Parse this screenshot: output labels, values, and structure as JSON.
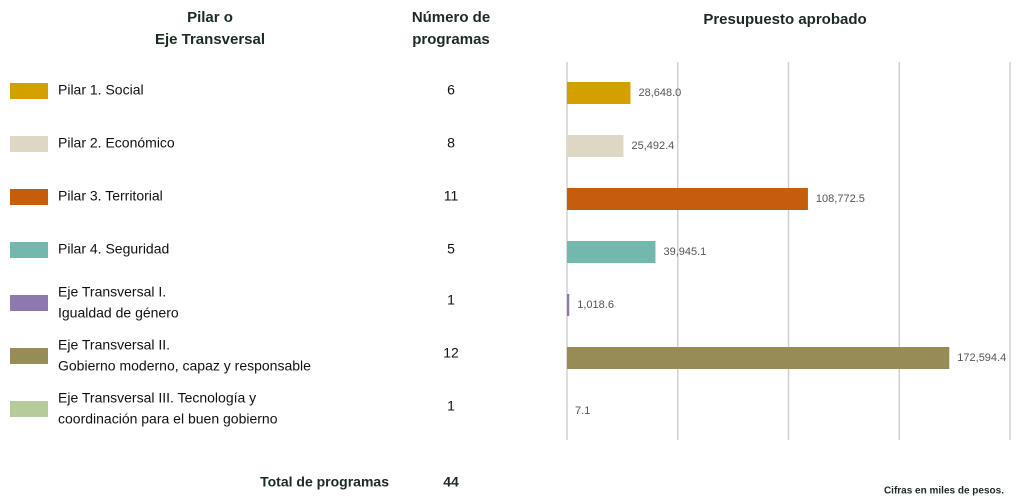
{
  "chart_data": {
    "type": "bar",
    "orientation": "horizontal",
    "column_headers": [
      [
        "Pilar o",
        "Eje Transversal"
      ],
      [
        "Número de",
        "programas"
      ],
      [
        "Presupuesto aprobado"
      ]
    ],
    "categories": [
      [
        "Pilar 1. Social"
      ],
      [
        "Pilar 2. Económico"
      ],
      [
        "Pilar 3. Territorial"
      ],
      [
        "Pilar 4. Seguridad"
      ],
      [
        "Eje Transversal I.",
        "Igualdad de género"
      ],
      [
        "Eje Transversal II.",
        "Gobierno moderno, capaz y responsable"
      ],
      [
        "Eje Transversal III. Tecnología y",
        "coordinación para el buen gobierno"
      ]
    ],
    "programas": [
      6,
      8,
      11,
      5,
      1,
      12,
      1
    ],
    "values": [
      28648.0,
      25492.4,
      108772.5,
      39945.1,
      1018.6,
      172594.4,
      7.1
    ],
    "value_labels": [
      "28,648.0",
      "25,492.4",
      "108,772.5",
      "39,945.1",
      "1,018.6",
      "172,594.4",
      "7.1"
    ],
    "colors": [
      "#d4a000",
      "#ddd8c4",
      "#c45e0a",
      "#72b8ae",
      "#8e78b0",
      "#978c55",
      "#b5cc9a"
    ],
    "xlim": [
      0,
      200000
    ],
    "xticks": [
      0,
      50000,
      100000,
      150000,
      200000
    ],
    "grid": true,
    "total_label": "Total de programas",
    "total": 44,
    "note": "Cifras en miles de pesos."
  }
}
